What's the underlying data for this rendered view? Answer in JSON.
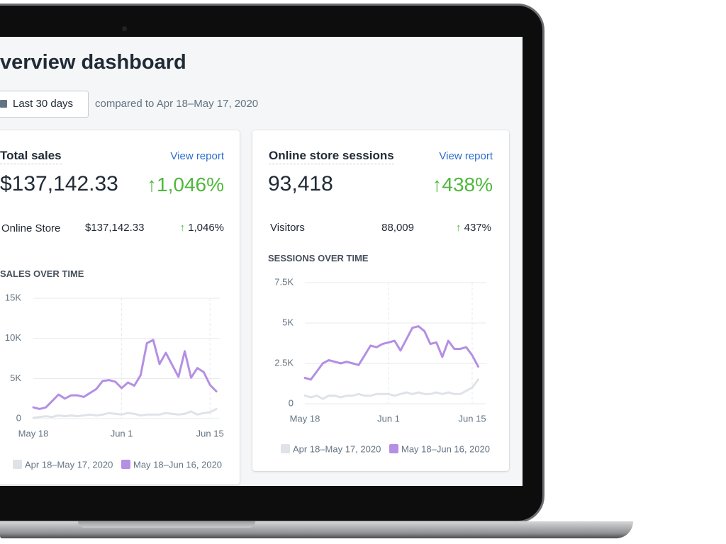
{
  "header": {
    "title": "verview dashboard"
  },
  "date_filter": {
    "label": "Last 30 days",
    "comparison": "compared to Apr 18–May 17, 2020"
  },
  "cards": [
    {
      "title": "Total sales",
      "link": "View report",
      "total": "$137,142.33",
      "change": "1,046%",
      "breakdown": {
        "name": "Online Store",
        "value": "$137,142.33",
        "change": "1,046%"
      }
    },
    {
      "title": "Online store sessions",
      "link": "View report",
      "total": "93,418",
      "change": "438%",
      "breakdown": {
        "name": "Visitors",
        "value": "88,009",
        "change": "437%"
      }
    }
  ],
  "chart_data": [
    {
      "type": "line",
      "title": "SALES OVER TIME",
      "categories": [
        "May 18",
        null,
        null,
        null,
        null,
        null,
        null,
        null,
        null,
        null,
        null,
        null,
        null,
        null,
        "Jun 1",
        null,
        null,
        null,
        null,
        null,
        null,
        null,
        null,
        null,
        null,
        null,
        null,
        null,
        "Jun 15",
        null
      ],
      "series": [
        {
          "name": "Apr 18–May 17, 2020",
          "color": "#dfe3e8",
          "values": [
            100,
            200,
            300,
            200,
            400,
            300,
            400,
            300,
            400,
            500,
            400,
            500,
            700,
            600,
            500,
            700,
            600,
            400,
            500,
            500,
            500,
            700,
            600,
            500,
            600,
            900,
            500,
            700,
            800,
            1200
          ]
        },
        {
          "name": "May 18–Jun 16, 2020",
          "color": "#b48fe3",
          "values": [
            1400,
            1200,
            1400,
            2200,
            3000,
            2500,
            2900,
            2900,
            2700,
            3200,
            3700,
            4700,
            4800,
            4600,
            3800,
            4500,
            4100,
            5400,
            9400,
            9800,
            6800,
            8200,
            6700,
            5200,
            8400,
            5100,
            6300,
            5800,
            4200,
            3400
          ]
        }
      ],
      "ylim": [
        0,
        15000
      ],
      "yticks": [
        0,
        {
          "value": 5000,
          "label": "5K"
        },
        {
          "value": 10000,
          "label": "10K"
        },
        {
          "value": 15000,
          "label": "15K"
        }
      ],
      "grid": true
    },
    {
      "type": "line",
      "title": "SESSIONS OVER TIME",
      "categories": [
        "May 18",
        null,
        null,
        null,
        null,
        null,
        null,
        null,
        null,
        null,
        null,
        null,
        null,
        null,
        "Jun 1",
        null,
        null,
        null,
        null,
        null,
        null,
        null,
        null,
        null,
        null,
        null,
        null,
        null,
        "Jun 15",
        null
      ],
      "series": [
        {
          "name": "Apr 18–May 17, 2020",
          "color": "#dfe3e8",
          "values": [
            500,
            400,
            500,
            300,
            500,
            500,
            400,
            500,
            500,
            600,
            500,
            500,
            600,
            600,
            600,
            500,
            600,
            700,
            600,
            700,
            600,
            600,
            700,
            600,
            700,
            600,
            600,
            800,
            1000,
            1500
          ]
        },
        {
          "name": "May 18–Jun 16, 2020",
          "color": "#b48fe3",
          "values": [
            1600,
            1500,
            2000,
            2500,
            2700,
            2600,
            2500,
            2600,
            2500,
            2400,
            3000,
            3600,
            3500,
            3700,
            3800,
            3900,
            3300,
            4000,
            4700,
            4800,
            4500,
            3700,
            3800,
            2900,
            3900,
            3400,
            3400,
            3500,
            3000,
            2300
          ]
        }
      ],
      "ylim": [
        0,
        7500
      ],
      "yticks": [
        0,
        {
          "value": 2500,
          "label": "2.5K"
        },
        {
          "value": 5000,
          "label": "5K"
        },
        {
          "value": 7500,
          "label": "7.5K"
        }
      ],
      "grid": true
    }
  ]
}
